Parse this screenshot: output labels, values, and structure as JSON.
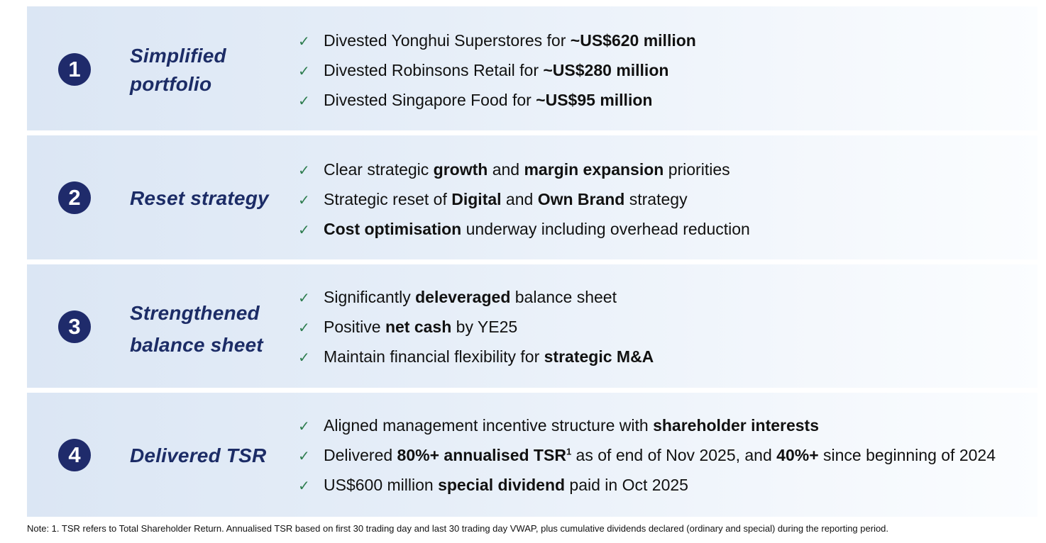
{
  "rows": [
    {
      "number": "1",
      "title": "Simplified portfolio",
      "bullets": [
        {
          "parts": [
            {
              "t": "Divested Yonghui Superstores for ",
              "b": false
            },
            {
              "t": "~US$620 million",
              "b": true
            }
          ]
        },
        {
          "parts": [
            {
              "t": "Divested Robinsons Retail for ",
              "b": false
            },
            {
              "t": "~US$280 million",
              "b": true
            }
          ]
        },
        {
          "parts": [
            {
              "t": "Divested Singapore Food for ",
              "b": false
            },
            {
              "t": "~US$95 million",
              "b": true
            }
          ]
        }
      ]
    },
    {
      "number": "2",
      "title": "Reset strategy",
      "bullets": [
        {
          "parts": [
            {
              "t": "Clear strategic ",
              "b": false
            },
            {
              "t": "growth",
              "b": true
            },
            {
              "t": " and ",
              "b": false
            },
            {
              "t": "margin expansion",
              "b": true
            },
            {
              "t": " priorities",
              "b": false
            }
          ]
        },
        {
          "parts": [
            {
              "t": "Strategic reset of ",
              "b": false
            },
            {
              "t": "Digital",
              "b": true
            },
            {
              "t": " and ",
              "b": false
            },
            {
              "t": "Own Brand",
              "b": true
            },
            {
              "t": " strategy",
              "b": false
            }
          ]
        },
        {
          "parts": [
            {
              "t": "Cost optimisation",
              "b": true
            },
            {
              "t": " underway including overhead reduction",
              "b": false
            }
          ]
        }
      ]
    },
    {
      "number": "3",
      "title": "Strengthened balance sheet",
      "bullets": [
        {
          "parts": [
            {
              "t": "Significantly ",
              "b": false
            },
            {
              "t": "deleveraged",
              "b": true
            },
            {
              "t": " balance sheet",
              "b": false
            }
          ]
        },
        {
          "parts": [
            {
              "t": "Positive ",
              "b": false
            },
            {
              "t": "net cash",
              "b": true
            },
            {
              "t": " by YE25",
              "b": false
            }
          ]
        },
        {
          "parts": [
            {
              "t": "Maintain financial flexibility for ",
              "b": false
            },
            {
              "t": "strategic M&A",
              "b": true
            }
          ]
        }
      ]
    },
    {
      "number": "4",
      "title": "Delivered TSR",
      "bullets": [
        {
          "parts": [
            {
              "t": "Aligned management incentive structure with ",
              "b": false
            },
            {
              "t": "shareholder interests",
              "b": true
            }
          ]
        },
        {
          "parts": [
            {
              "t": "Delivered ",
              "b": false
            },
            {
              "t": "80%+ annualised TSR",
              "b": true
            },
            {
              "t": "1",
              "b": true,
              "sup": true
            },
            {
              "t": " as of end of Nov 2025, and ",
              "b": false
            },
            {
              "t": "40%+",
              "b": true
            },
            {
              "t": " since beginning of 2024",
              "b": false
            }
          ]
        },
        {
          "parts": [
            {
              "t": "US$600 million ",
              "b": false
            },
            {
              "t": "special dividend",
              "b": true
            },
            {
              "t": " paid in Oct 2025",
              "b": false
            }
          ]
        }
      ]
    }
  ],
  "footnote": "Note: 1. TSR refers to Total Shareholder Return. Annualised TSR based on first 30 trading day and last 30 trading day VWAP, plus cumulative dividends declared (ordinary and special) during the reporting period.",
  "icons": {
    "bullet": "check-icon"
  },
  "colors": {
    "accent": "#1f2b6b",
    "title": "#1c2c66",
    "check": "#2e7d4f"
  }
}
